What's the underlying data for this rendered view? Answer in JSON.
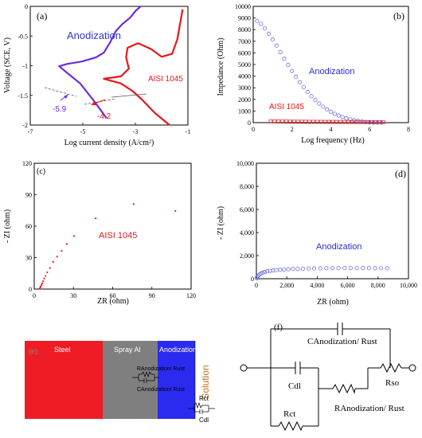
{
  "chart_data": [
    {
      "panel": "(a)",
      "type": "line",
      "xlabel": "Log current density (A/cm²)",
      "ylabel": "Voltage (SCE, V)",
      "xlim": [
        -7,
        -1
      ],
      "ylim": [
        -2,
        0
      ],
      "xticks": [
        "-7",
        "-5",
        "-3",
        "-1"
      ],
      "yticks": [
        "0",
        "-0.5",
        "-1",
        "-1.5",
        "-2"
      ],
      "series": [
        {
          "name": "Anodization",
          "color": "#6a2ee0",
          "x": [
            -4.1,
            -4.6,
            -5.1,
            -5.6,
            -5.9,
            -5.6,
            -5.05,
            -4.5,
            -4.2,
            -3.95,
            -3.75,
            -3.5,
            -3.2,
            -3.0,
            -2.8
          ],
          "y": [
            -1.88,
            -1.58,
            -1.3,
            -1.12,
            -1.01,
            -0.97,
            -0.93,
            -0.86,
            -0.78,
            -0.6,
            -0.42,
            -0.3,
            -0.19,
            -0.08,
            0.0
          ]
        },
        {
          "name": "AISI 1045",
          "color": "#e8161b",
          "x": [
            -1.7,
            -2.25,
            -2.75,
            -3.1,
            -3.55,
            -4.2,
            -3.55,
            -3.25,
            -3.35,
            -3.3,
            -2.9,
            -2.4,
            -2.0,
            -1.6,
            -1.4,
            -1.2
          ],
          "y": [
            -2.0,
            -1.8,
            -1.57,
            -1.43,
            -1.3,
            -1.22,
            -1.18,
            -1.05,
            -0.86,
            -0.7,
            -0.62,
            -0.72,
            -0.85,
            -0.8,
            -0.55,
            -0.05
          ]
        }
      ],
      "annotations": [
        "Anodization",
        "AISI 1045",
        "-5.9",
        "-4.2"
      ]
    },
    {
      "panel": "(b)",
      "type": "scatter",
      "xlabel": "Log frequency (Hz)",
      "ylabel": "Impedance (Ohm)",
      "xlim": [
        0,
        8
      ],
      "ylim": [
        0,
        10000
      ],
      "xticks": [
        "0",
        "2",
        "4",
        "6",
        "8"
      ],
      "yticks": [
        "0",
        "1000",
        "2000",
        "3000",
        "4000",
        "5000",
        "6000",
        "7000",
        "8000",
        "9000",
        "10000"
      ],
      "series": [
        {
          "name": "Anodization",
          "color": "#5b5be6",
          "marker": "circle-open",
          "x": [
            0.2,
            0.4,
            0.6,
            0.8,
            1.0,
            1.2,
            1.4,
            1.6,
            1.8,
            2.0,
            2.2,
            2.4,
            2.6,
            2.8,
            3.0,
            3.2,
            3.4,
            3.6,
            3.8,
            4.0,
            4.2,
            4.4,
            4.6,
            4.8,
            5.0,
            5.2,
            5.4,
            5.6,
            5.8,
            6.0,
            6.2,
            6.4,
            6.6
          ],
          "y": [
            8750,
            8500,
            8100,
            7650,
            7150,
            6620,
            6050,
            5500,
            4960,
            4440,
            3950,
            3480,
            3040,
            2640,
            2270,
            1940,
            1640,
            1370,
            1140,
            930,
            760,
            610,
            480,
            370,
            280,
            200,
            140,
            90,
            50,
            20,
            5,
            0,
            0
          ]
        },
        {
          "name": "AISI 1045",
          "color": "#e8161b",
          "marker": "square-open",
          "x": [
            0.9,
            1.1,
            1.3,
            1.5,
            1.7,
            1.9,
            2.1,
            2.3,
            2.5,
            2.7,
            2.9,
            3.1,
            3.3,
            3.5,
            3.7,
            3.9,
            4.1,
            4.3,
            4.5,
            4.7,
            4.9,
            5.1,
            5.3,
            5.5,
            5.7,
            5.9,
            6.1,
            6.3,
            6.5,
            6.7
          ],
          "y": [
            110,
            105,
            100,
            95,
            90,
            85,
            82,
            80,
            78,
            76,
            74,
            72,
            70,
            68,
            66,
            65,
            64,
            63,
            62,
            61,
            60,
            59,
            58,
            57,
            56,
            55,
            54,
            53,
            52,
            51
          ]
        }
      ],
      "annotations": [
        "Anodization",
        "AISI 1045"
      ]
    },
    {
      "panel": "(c)",
      "type": "scatter",
      "xlabel": "ZR (ohm)",
      "ylabel": "- ZI (ohm)",
      "xlim": [
        0,
        120
      ],
      "ylim": [
        0,
        120
      ],
      "xticks": [
        "0",
        "30",
        "60",
        "90",
        "120"
      ],
      "yticks": [
        "0",
        "30",
        "60",
        "90",
        "120"
      ],
      "series": [
        {
          "name": "AISI 1045",
          "color": "#e8161b",
          "marker": "dot",
          "x": [
            4.2,
            4.6,
            5.0,
            5.5,
            6.1,
            6.8,
            7.6,
            8.6,
            10.0,
            12.0,
            14.5,
            17.5,
            21.0,
            25.0,
            30.5,
            47.0,
            76.0,
            108.0
          ],
          "y": [
            0.5,
            1.5,
            2.5,
            4.0,
            5.5,
            7.5,
            10.0,
            12.5,
            16.0,
            20.0,
            26.0,
            31.0,
            36.5,
            43.0,
            50.5,
            67.5,
            81.0,
            74.5
          ]
        }
      ],
      "annotations": [
        "AISI 1045"
      ]
    },
    {
      "panel": "(d)",
      "type": "scatter",
      "xlabel": "ZR (ohm)",
      "ylabel": "- ZI (ohm)",
      "xlim": [
        0,
        10000
      ],
      "ylim": [
        0,
        10000
      ],
      "xticks": [
        "0",
        "2,000",
        "4,000",
        "6,000",
        "8,000",
        "10,000"
      ],
      "yticks": [
        "0",
        "2,000",
        "4,000",
        "6,000",
        "8,000",
        "10,000"
      ],
      "series": [
        {
          "name": "Anodization",
          "color": "#5b5be6",
          "marker": "circle-open",
          "x": [
            20,
            60,
            120,
            200,
            300,
            420,
            560,
            720,
            900,
            1100,
            1320,
            1560,
            1820,
            2100,
            2400,
            2720,
            3060,
            3420,
            3800,
            4200,
            4600,
            5000,
            5400,
            5800,
            6200,
            6600,
            7000,
            7400,
            7800,
            8200,
            8600
          ],
          "y": [
            50,
            150,
            260,
            360,
            450,
            530,
            590,
            640,
            680,
            720,
            750,
            780,
            800,
            820,
            840,
            860,
            870,
            880,
            890,
            900,
            905,
            910,
            915,
            918,
            920,
            920,
            918,
            915,
            910,
            905,
            900
          ]
        }
      ],
      "annotations": [
        "Anodization"
      ]
    }
  ],
  "panels": {
    "a": {
      "label": "(a)",
      "x_title": "Log current density (A/cm²)",
      "y_title": "Voltage (SCE, V)",
      "note_anod": "Anodization",
      "note_steel": "AISI 1045",
      "note_val1": "-5.9",
      "note_val2": "-4.2"
    },
    "b": {
      "label": "(b)",
      "x_title": "Log frequency (Hz)",
      "y_title": "Impedance (Ohm)",
      "note_anod": "Anodization",
      "note_steel": "AISI 1045"
    },
    "c": {
      "label": "(c)",
      "x_title": "ZR (ohm)",
      "y_title": "- ZI (ohm)",
      "note": "AISI 1045"
    },
    "d": {
      "label": "(d)",
      "x_title": "ZR (ohm)",
      "y_title": "- ZI (ohm)",
      "note": "Anodization"
    },
    "e": {
      "label": "(e)",
      "steel": "Steel",
      "spray": "Spray Al",
      "anod": "Anodization",
      "solution": "Solution",
      "r_anod": "RAnodization/ Rust",
      "c_anod": "CAnodization/ Rust",
      "rct": "Rct",
      "cdl": "Cdl"
    },
    "f": {
      "label": "(f)",
      "c_anod": "CAnodization/ Rust",
      "cdl": "Cdl",
      "rso": "Rso",
      "rct": "Rct",
      "r_anod": "RAnodization/ Rust"
    }
  },
  "colors": {
    "anodization_line": "#6a2ee0",
    "steel_line": "#e8161b",
    "marker_blue": "#5b5be6",
    "steel_block": "#ee1c25",
    "spray_block": "#7f7f7f",
    "anod_block": "#2b2bf0",
    "solution_text": "#b8741a"
  }
}
